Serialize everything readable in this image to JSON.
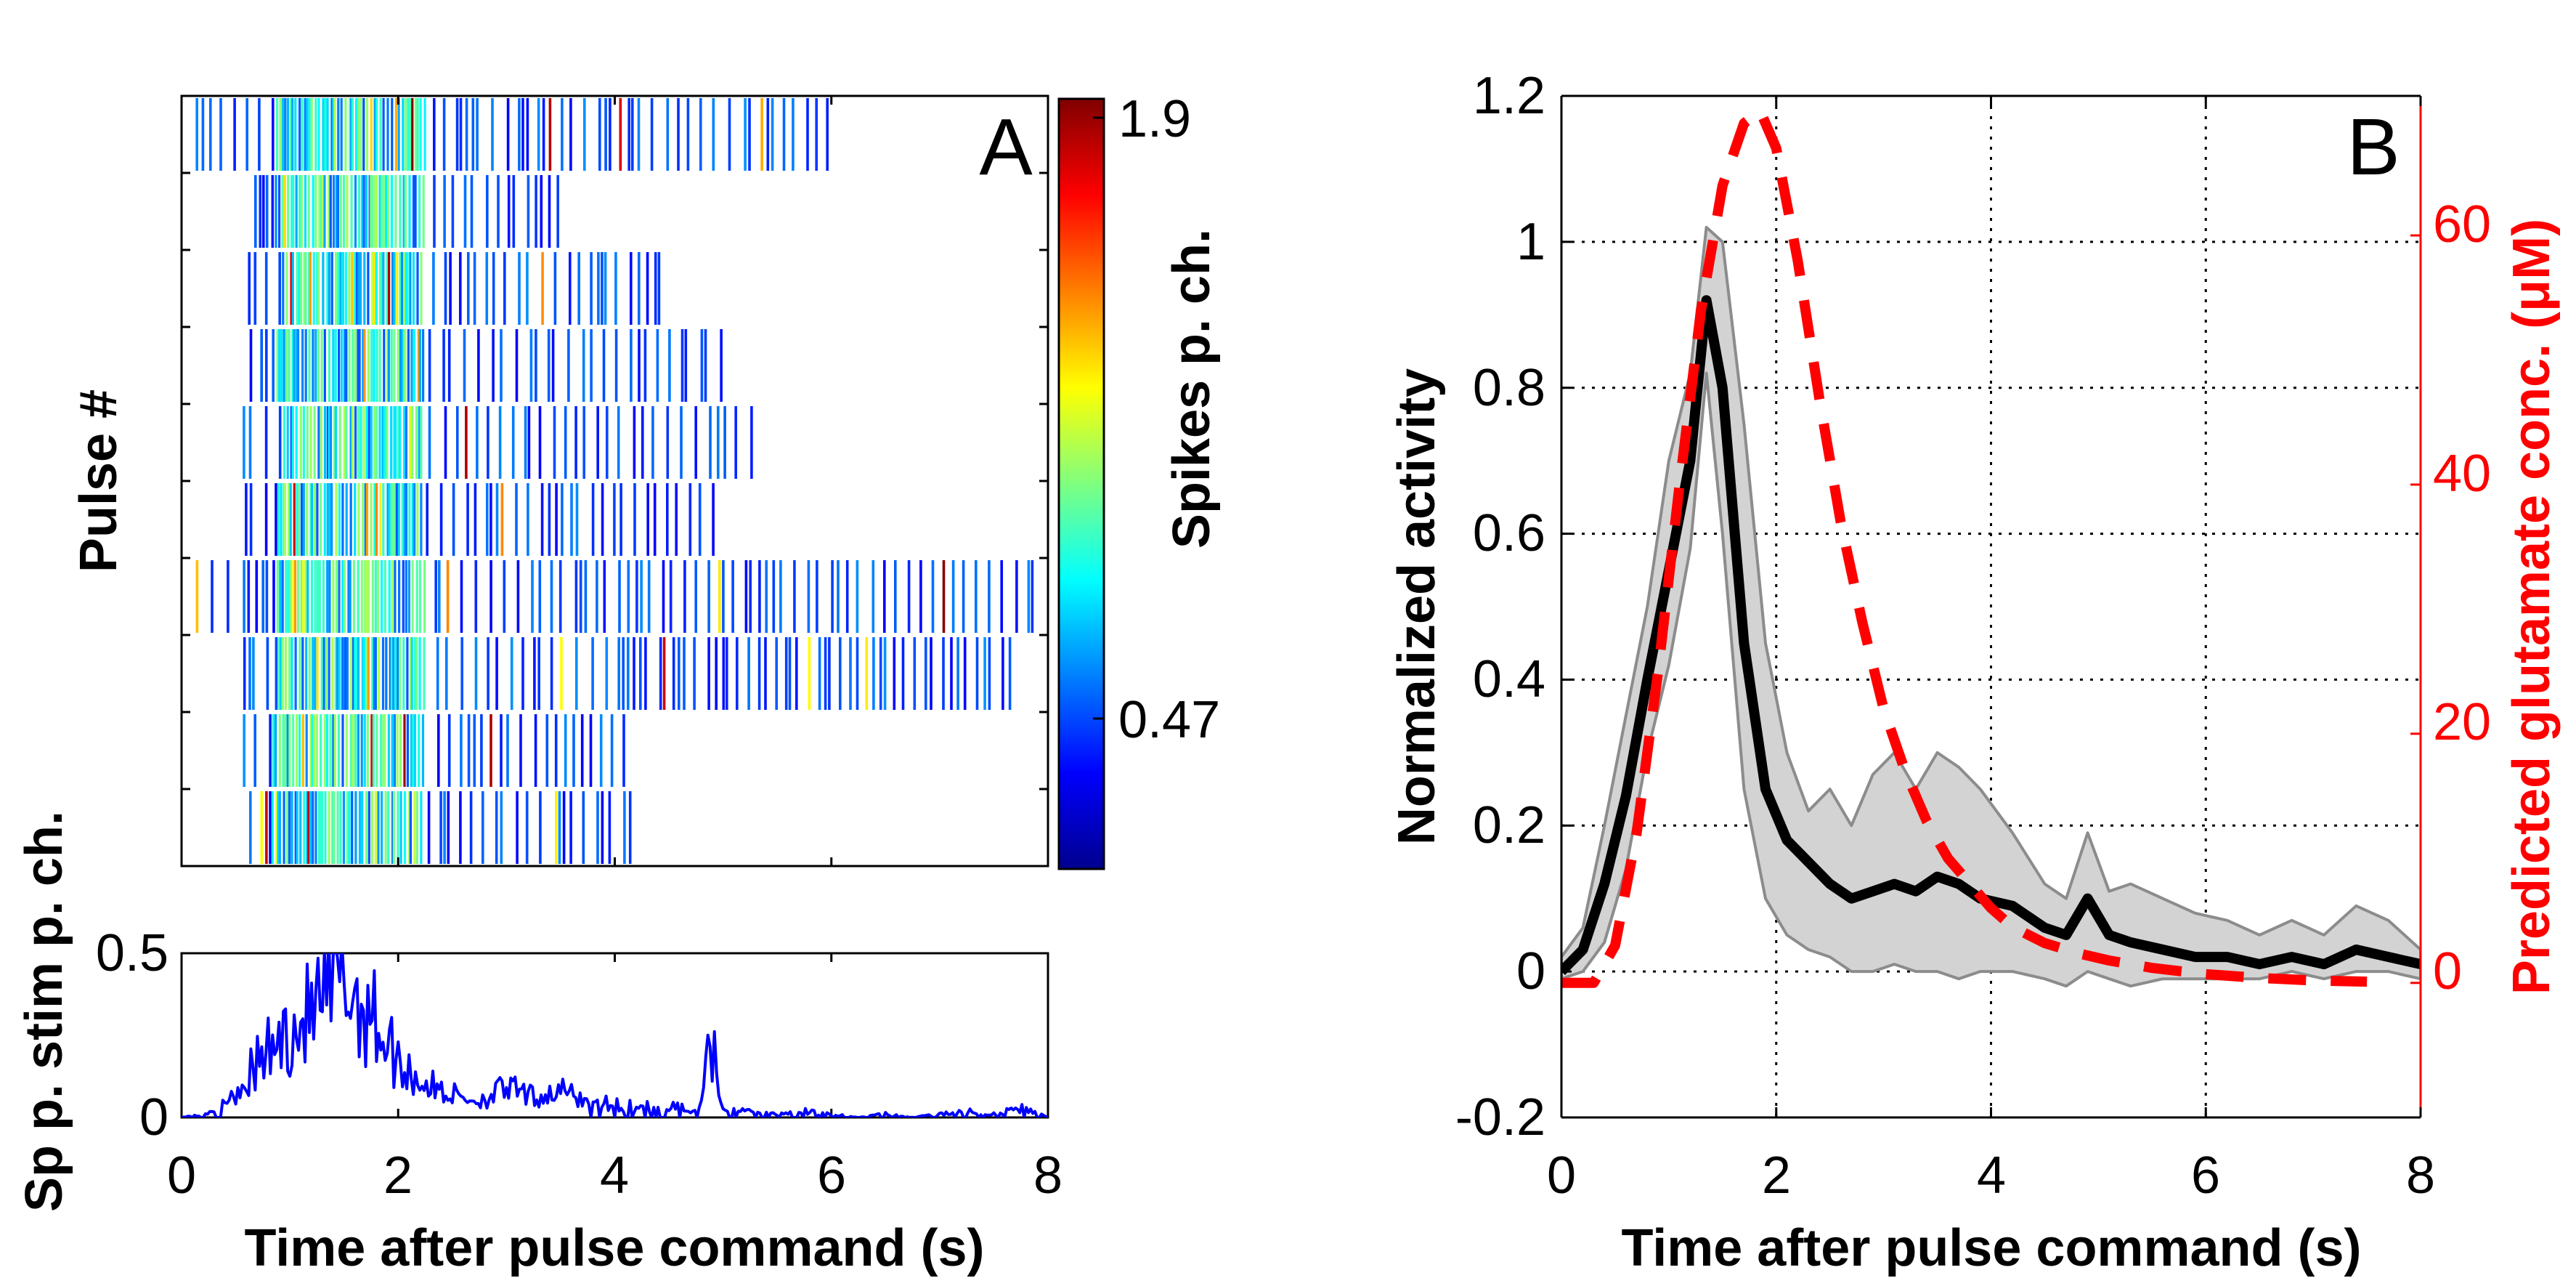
{
  "panels": {
    "A": {
      "letter": "A",
      "raster": {
        "ylabel": "Pulse #",
        "colorbar": {
          "label": "Spikes p. ch.",
          "tick_labels": [
            "1.9",
            "0.47"
          ],
          "ticks": [
            1.9,
            0.47
          ],
          "range": [
            0,
            2.0
          ],
          "colormap": "jet"
        }
      },
      "psth": {
        "ylabel": "Sp p. stim p. ch.",
        "xlabel": "Time after pulse command (s)",
        "xlim": [
          0,
          8
        ],
        "ylim": [
          0,
          0.5
        ],
        "xticks": [
          "0",
          "2",
          "4",
          "6",
          "8"
        ],
        "yticks": [
          "0",
          "0.5"
        ],
        "line_color": "#0000ff"
      }
    },
    "B": {
      "letter": "B",
      "xlabel": "Time after pulse command (s)",
      "ylabel_left": "Normalized activity",
      "ylabel_right": "Predicted glutamate conc. (μM)",
      "xticks": [
        "0",
        "2",
        "4",
        "6",
        "8"
      ],
      "yticks_left": [
        "-0.2",
        "0",
        "0.2",
        "0.4",
        "0.6",
        "0.8",
        "1",
        "1.2"
      ],
      "yticks_right": [
        "0",
        "20",
        "40",
        "60"
      ]
    }
  },
  "chart_data": [
    {
      "type": "heatmap",
      "panel": "A (top)",
      "ylabel": "Pulse #",
      "rows": 10,
      "x_range_s": [
        0,
        8
      ],
      "colorbar": {
        "label": "Spikes p. ch.",
        "ticks": [
          1.9,
          0.47
        ],
        "range": [
          0,
          2.0
        ]
      },
      "row_activity_extent_s": [
        [
          0.1,
          6.0
        ],
        [
          0.6,
          3.5
        ],
        [
          0.55,
          4.5
        ],
        [
          0.5,
          5.0
        ],
        [
          0.5,
          5.3
        ],
        [
          0.45,
          5.0
        ],
        [
          0.0,
          7.9
        ],
        [
          0.45,
          7.7
        ],
        [
          0.5,
          4.1
        ],
        [
          0.55,
          4.2
        ]
      ]
    },
    {
      "type": "line",
      "panel": "A (bottom)",
      "xlabel": "Time after pulse command (s)",
      "ylabel": "Sp p. stim p. ch.",
      "xlim": [
        0,
        8
      ],
      "ylim": [
        0,
        0.5
      ],
      "series": [
        {
          "color": "#0000ff",
          "x": [
            0.0,
            0.25,
            0.5,
            0.75,
            1.0,
            1.25,
            1.5,
            1.75,
            2.0,
            2.25,
            2.5,
            2.75,
            3.0,
            3.25,
            3.5,
            3.75,
            4.0,
            4.25,
            4.5,
            4.75,
            4.9,
            5.0,
            5.25,
            5.5,
            5.75,
            6.0,
            6.25,
            6.5,
            6.75,
            7.0,
            7.25,
            7.5,
            7.75,
            8.0
          ],
          "y": [
            0.0,
            0.01,
            0.08,
            0.18,
            0.26,
            0.33,
            0.4,
            0.32,
            0.17,
            0.1,
            0.07,
            0.05,
            0.09,
            0.06,
            0.08,
            0.05,
            0.04,
            0.03,
            0.04,
            0.02,
            0.24,
            0.03,
            0.02,
            0.01,
            0.02,
            0.01,
            0.0,
            0.01,
            0.0,
            0.01,
            0.02,
            0.01,
            0.03,
            0.0
          ]
        }
      ]
    },
    {
      "type": "line",
      "panel": "B",
      "xlabel": "Time after pulse command (s)",
      "ylabel": "Normalized activity",
      "ylabel_right": "Predicted glutamate conc. (μM)",
      "xlim": [
        0,
        8
      ],
      "ylim": [
        -0.2,
        1.2
      ],
      "ylim_right": [
        -10.8,
        71.2
      ],
      "grid": true,
      "series": [
        {
          "axis": "left",
          "style": "solid",
          "color": "#000000",
          "band_color": "#d3d3d3",
          "x": [
            0.0,
            0.2,
            0.4,
            0.6,
            0.8,
            1.0,
            1.2,
            1.35,
            1.5,
            1.7,
            1.9,
            2.1,
            2.3,
            2.5,
            2.7,
            2.9,
            3.1,
            3.3,
            3.5,
            3.7,
            3.9,
            4.2,
            4.5,
            4.7,
            4.9,
            5.1,
            5.3,
            5.6,
            5.9,
            6.2,
            6.5,
            6.8,
            7.1,
            7.4,
            7.7,
            8.0
          ],
          "y": [
            0.0,
            0.03,
            0.12,
            0.24,
            0.4,
            0.55,
            0.7,
            0.92,
            0.8,
            0.45,
            0.25,
            0.18,
            0.15,
            0.12,
            0.1,
            0.11,
            0.12,
            0.11,
            0.13,
            0.12,
            0.1,
            0.09,
            0.06,
            0.05,
            0.1,
            0.05,
            0.04,
            0.03,
            0.02,
            0.02,
            0.01,
            0.02,
            0.01,
            0.03,
            0.02,
            0.01
          ],
          "band_upper": [
            0.02,
            0.06,
            0.2,
            0.35,
            0.5,
            0.7,
            0.82,
            1.02,
            1.0,
            0.75,
            0.45,
            0.3,
            0.22,
            0.25,
            0.2,
            0.27,
            0.3,
            0.25,
            0.3,
            0.28,
            0.25,
            0.19,
            0.12,
            0.1,
            0.19,
            0.11,
            0.12,
            0.1,
            0.08,
            0.07,
            0.05,
            0.07,
            0.05,
            0.09,
            0.07,
            0.03
          ],
          "band_lower": [
            -0.01,
            0.0,
            0.04,
            0.14,
            0.3,
            0.42,
            0.58,
            0.82,
            0.6,
            0.25,
            0.1,
            0.05,
            0.03,
            0.02,
            0.0,
            0.0,
            0.01,
            0.0,
            0.0,
            -0.01,
            0.0,
            0.0,
            -0.01,
            -0.02,
            0.0,
            -0.01,
            -0.02,
            -0.01,
            -0.01,
            -0.01,
            -0.01,
            0.0,
            -0.01,
            0.0,
            0.0,
            -0.01
          ]
        },
        {
          "axis": "right",
          "style": "dashed",
          "color": "#ff0000",
          "x": [
            0.0,
            0.3,
            0.5,
            0.7,
            0.9,
            1.1,
            1.3,
            1.5,
            1.7,
            1.85,
            2.0,
            2.2,
            2.4,
            2.6,
            2.8,
            3.0,
            3.2,
            3.4,
            3.6,
            3.8,
            4.0,
            4.2,
            4.5,
            4.8,
            5.1,
            5.5,
            6.0,
            6.5,
            7.0,
            7.5
          ],
          "y": [
            0.0,
            0.0,
            3.0,
            12.0,
            25.0,
            40.0,
            54.0,
            64.0,
            69.0,
            70.0,
            67.0,
            58.0,
            47.0,
            37.0,
            29.0,
            22.0,
            17.0,
            13.0,
            10.0,
            8.0,
            6.0,
            4.5,
            3.2,
            2.4,
            1.8,
            1.2,
            0.7,
            0.4,
            0.2,
            0.1
          ]
        }
      ]
    }
  ]
}
